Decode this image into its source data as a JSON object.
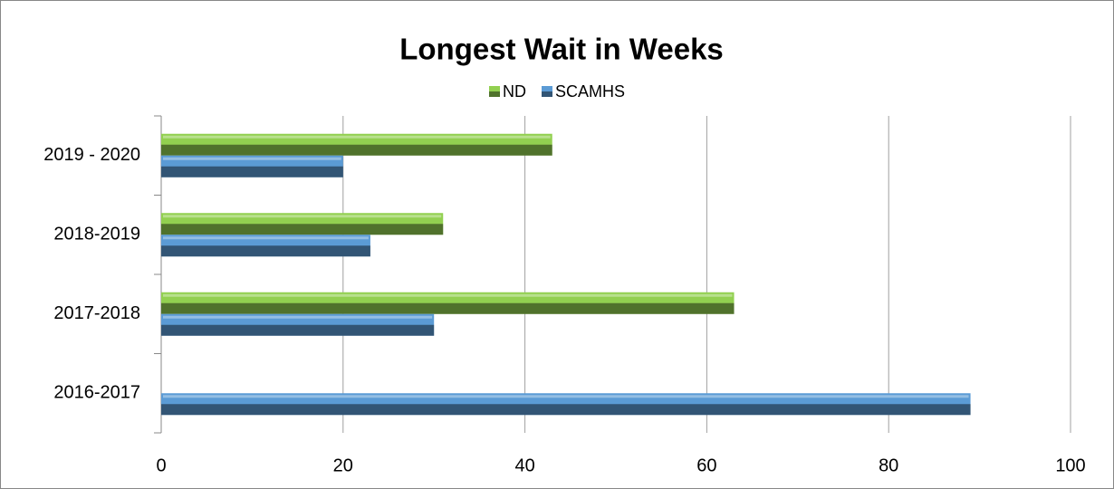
{
  "chart_data": {
    "type": "hbar",
    "title": "Longest Wait in Weeks",
    "categories": [
      "2016-2017",
      "2017-2018",
      "2018-2019",
      "2019 - 2020"
    ],
    "series": [
      {
        "name": "ND",
        "color": "#92d050",
        "values": [
          null,
          63,
          31,
          43
        ]
      },
      {
        "name": "SCAMHS",
        "color": "#5b9bd5",
        "values": [
          89,
          30,
          23,
          20
        ]
      }
    ],
    "xlim": [
      0,
      100
    ],
    "xticks": [
      0,
      20,
      40,
      60,
      80,
      100
    ],
    "grid": true,
    "legend": "top"
  }
}
